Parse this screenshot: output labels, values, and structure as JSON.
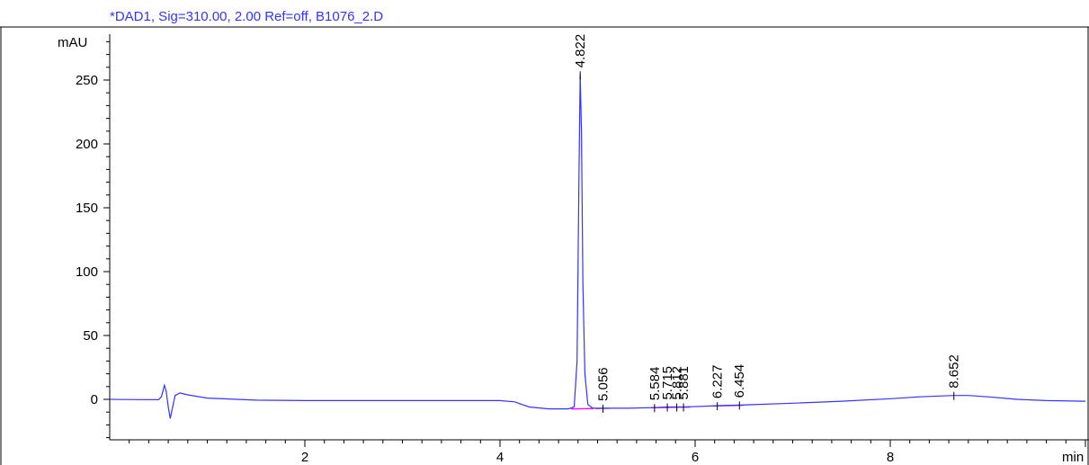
{
  "chart_data": {
    "type": "line",
    "title": "*DAD1, Sig=310.00, 2.00 Ref=off, B1076_2.D",
    "ylabel": "mAU",
    "xlabel": "min",
    "xlim": [
      0,
      10
    ],
    "ylim": [
      -32,
      285
    ],
    "x_ticks": [
      2,
      4,
      6,
      8
    ],
    "y_ticks": [
      0,
      50,
      100,
      150,
      200,
      250
    ],
    "grid": false,
    "series": [
      {
        "color": "#3333ff",
        "points": [
          [
            0,
            0
          ],
          [
            0.3,
            -0.2
          ],
          [
            0.5,
            -0.3
          ],
          [
            0.53,
            2
          ],
          [
            0.56,
            11
          ],
          [
            0.58,
            6
          ],
          [
            0.6,
            -6
          ],
          [
            0.62,
            -15
          ],
          [
            0.64,
            -8
          ],
          [
            0.67,
            3
          ],
          [
            0.72,
            5
          ],
          [
            0.8,
            3.5
          ],
          [
            1.0,
            1
          ],
          [
            1.5,
            -0.6
          ],
          [
            2,
            -1
          ],
          [
            3,
            -1
          ],
          [
            4,
            -1
          ],
          [
            4.15,
            -2
          ],
          [
            4.3,
            -6
          ],
          [
            4.5,
            -7.5
          ],
          [
            4.7,
            -7.5
          ],
          [
            4.76,
            -6
          ],
          [
            4.79,
            30
          ],
          [
            4.81,
            180
          ],
          [
            4.822,
            254
          ],
          [
            4.835,
            210
          ],
          [
            4.85,
            90
          ],
          [
            4.87,
            20
          ],
          [
            4.9,
            -4
          ],
          [
            4.95,
            -7
          ],
          [
            5.056,
            -7
          ],
          [
            5.3,
            -7
          ],
          [
            5.584,
            -6.5
          ],
          [
            5.715,
            -6
          ],
          [
            5.812,
            -6
          ],
          [
            5.881,
            -6
          ],
          [
            6.227,
            -5
          ],
          [
            6.454,
            -4.5
          ],
          [
            7.0,
            -3
          ],
          [
            7.5,
            -1.5
          ],
          [
            8.0,
            0.5
          ],
          [
            8.3,
            2
          ],
          [
            8.652,
            3
          ],
          [
            8.8,
            3
          ],
          [
            9.0,
            2
          ],
          [
            9.3,
            0
          ],
          [
            9.6,
            -1
          ],
          [
            10,
            -1.5
          ]
        ]
      }
    ],
    "peaks": [
      {
        "label": "4.822",
        "x": 4.822,
        "y": 254
      },
      {
        "label": "5.056",
        "x": 5.056,
        "y": -7
      },
      {
        "label": "5.584",
        "x": 5.584,
        "y": -6.5
      },
      {
        "label": "5.715",
        "x": 5.715,
        "y": -6
      },
      {
        "label": "5.812",
        "x": 5.812,
        "y": -6
      },
      {
        "label": "5.881",
        "x": 5.881,
        "y": -6
      },
      {
        "label": "6.227",
        "x": 6.227,
        "y": -5
      },
      {
        "label": "6.454",
        "x": 6.454,
        "y": -4.5
      },
      {
        "label": "8.652",
        "x": 8.652,
        "y": 3
      }
    ],
    "baseline_color": "#ff00ff"
  }
}
